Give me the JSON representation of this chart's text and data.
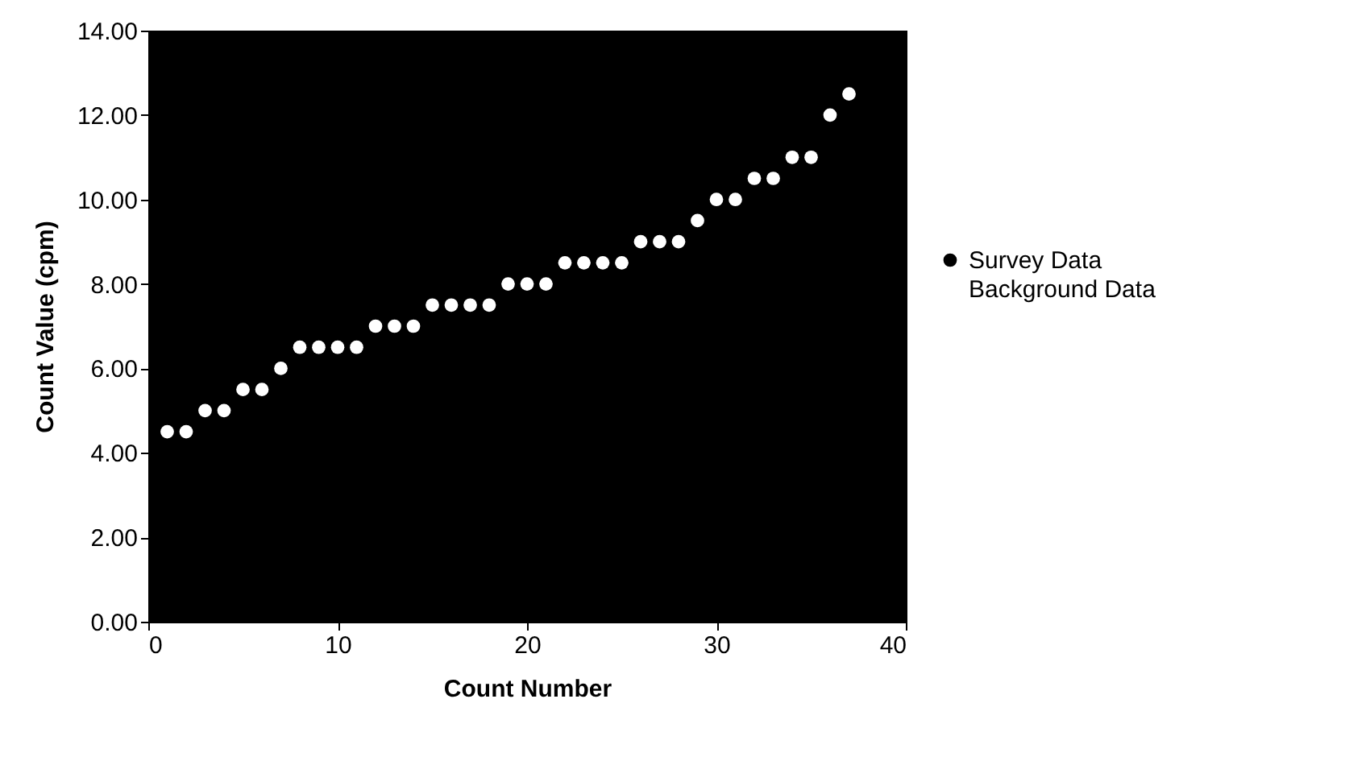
{
  "chart_data": {
    "type": "scatter",
    "xlabel": "Count Number",
    "ylabel": "Count Value (cpm)",
    "xlim": [
      0,
      40
    ],
    "xticks": [
      0,
      10,
      20,
      30,
      40
    ],
    "ylim": [
      0,
      14
    ],
    "yticks": [
      {
        "value": 0,
        "label": "0.00"
      },
      {
        "value": 2,
        "label": "2.00"
      },
      {
        "value": 4,
        "label": "4.00"
      },
      {
        "value": 6,
        "label": "6.00"
      },
      {
        "value": 8,
        "label": "8.00"
      },
      {
        "value": 10,
        "label": "10.00"
      },
      {
        "value": 12,
        "label": "12.00"
      },
      {
        "value": 14,
        "label": "14.00"
      }
    ],
    "x": [
      1,
      2,
      3,
      4,
      5,
      6,
      7,
      8,
      9,
      10,
      11,
      12,
      13,
      14,
      15,
      16,
      17,
      18,
      19,
      20,
      21,
      22,
      23,
      24,
      25,
      26,
      27,
      28,
      29,
      30,
      31,
      32,
      33,
      34,
      35,
      36,
      37
    ],
    "series": [
      {
        "name": "Survey Data",
        "color": "#000000",
        "values": [
          null,
          null,
          null,
          null,
          null,
          null,
          null,
          null,
          null,
          null,
          null,
          null,
          null,
          null,
          null,
          null,
          null,
          null,
          null,
          null,
          null,
          null,
          null,
          null,
          null,
          null,
          null,
          null,
          null,
          null,
          null,
          null,
          null,
          null,
          null,
          null,
          null
        ]
      },
      {
        "name": "Background Data",
        "color": "#ffffff",
        "values": [
          4.5,
          4.5,
          5.0,
          5.0,
          5.5,
          5.5,
          6.0,
          6.5,
          6.5,
          6.5,
          6.5,
          7.0,
          7.0,
          7.0,
          7.5,
          7.5,
          7.5,
          7.5,
          8.0,
          8.0,
          8.0,
          8.5,
          8.5,
          8.5,
          8.5,
          9.0,
          9.0,
          9.0,
          9.5,
          10.0,
          10.0,
          10.5,
          10.5,
          11.0,
          11.0,
          12.0,
          12.5
        ]
      }
    ],
    "marker": "circle",
    "grid": false,
    "legend": "right"
  }
}
